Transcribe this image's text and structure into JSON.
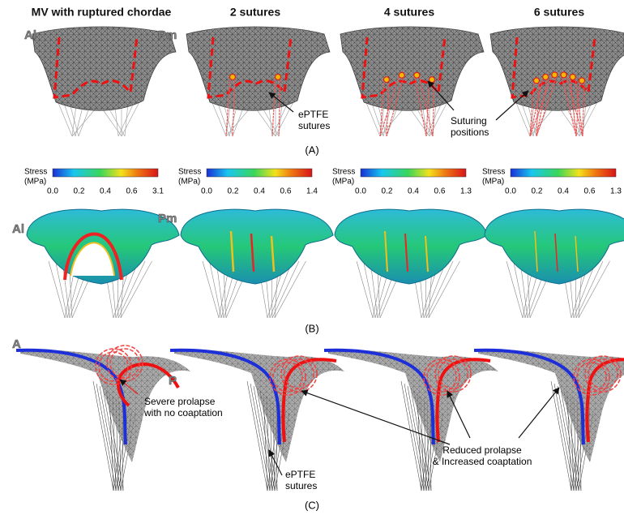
{
  "figure": {
    "column_titles": [
      "MV with ruptured chordae",
      "2 sutures",
      "4 sutures",
      "6 sutures"
    ],
    "panel_labels": [
      "(A)",
      "(B)",
      "(C)"
    ],
    "row_a": {
      "side_labels": [
        "Al",
        "Pm"
      ],
      "annotations": [
        [
          "ePTFE",
          "sutures"
        ],
        [
          "Suturing",
          "positions"
        ]
      ]
    },
    "colorbars": [
      {
        "title": [
          "Stress",
          "(MPa)"
        ],
        "ticks": [
          "0.0",
          "0.2",
          "0.4",
          "0.6",
          "3.1"
        ]
      },
      {
        "title": [
          "Stress",
          "(MPa)"
        ],
        "ticks": [
          "0.0",
          "0.2",
          "0.4",
          "0.6",
          "1.4"
        ]
      },
      {
        "title": [
          "Stress",
          "(MPa)"
        ],
        "ticks": [
          "0.0",
          "0.2",
          "0.4",
          "0.6",
          "1.3"
        ]
      },
      {
        "title": [
          "Stress",
          "(MPa)"
        ],
        "ticks": [
          "0.0",
          "0.2",
          "0.4",
          "0.6",
          "1.3"
        ]
      }
    ],
    "row_b": {
      "side_labels": [
        "Al",
        "Pm"
      ]
    },
    "row_c": {
      "side_labels": [
        "A",
        "P"
      ],
      "annotations": [
        [
          "Severe prolapse",
          "with no coaptation"
        ],
        [
          "ePTFE",
          "sutures"
        ],
        [
          "Reduced prolapse",
          "& Increased coaptation"
        ]
      ]
    }
  }
}
